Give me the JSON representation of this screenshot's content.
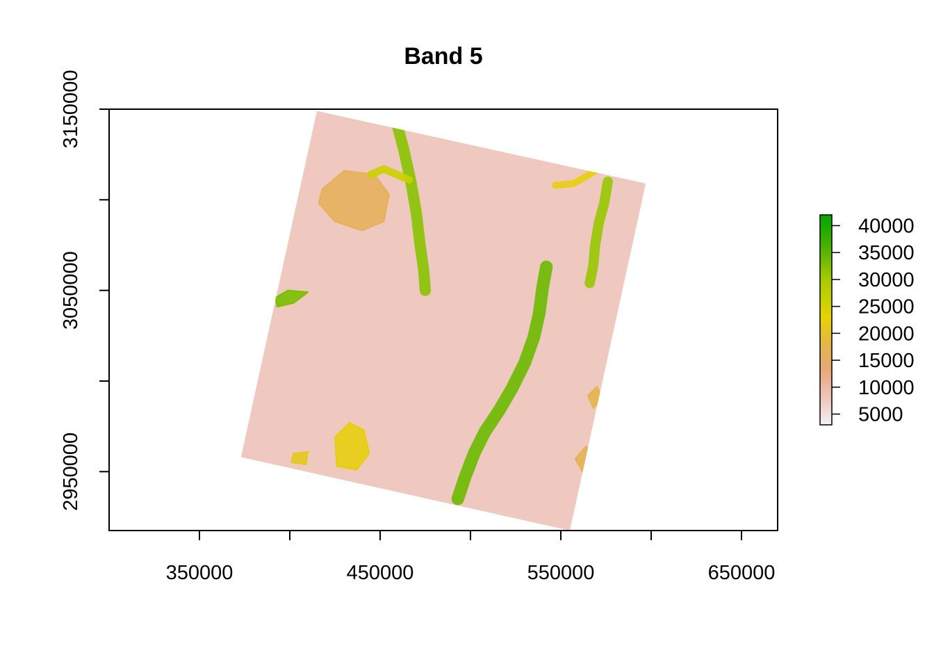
{
  "chart_data": {
    "type": "heatmap",
    "title": "Band 5",
    "xlabel": "",
    "ylabel": "",
    "xlim": [
      300000,
      670000
    ],
    "ylim": [
      2917500,
      3150000
    ],
    "x_ticks": [
      350000,
      400000,
      450000,
      500000,
      550000,
      600000,
      650000
    ],
    "x_tick_labels": [
      "350000",
      "",
      "450000",
      "",
      "550000",
      "",
      "650000"
    ],
    "y_ticks": [
      2950000,
      3000000,
      3050000,
      3100000,
      3150000
    ],
    "y_tick_labels": [
      "2950000",
      "",
      "3050000",
      "",
      "3150000"
    ],
    "raster_corners": [
      {
        "corner": "top-left",
        "x": 415000,
        "y": 3149000
      },
      {
        "corner": "top-right",
        "x": 597000,
        "y": 3109000
      },
      {
        "corner": "bottom-right",
        "x": 555000,
        "y": 2917500
      },
      {
        "corner": "bottom-left",
        "x": 373000,
        "y": 2958000
      }
    ],
    "legend": {
      "position": "right",
      "range": [
        3000,
        42000
      ],
      "ticks": [
        5000,
        10000,
        15000,
        20000,
        25000,
        30000,
        35000,
        40000
      ],
      "tick_labels": [
        "5000",
        "10000",
        "15000",
        "20000",
        "25000",
        "30000",
        "35000",
        "40000"
      ],
      "color_stops": [
        {
          "value": 3000,
          "color": "#f2f2f2"
        },
        {
          "value": 8000,
          "color": "#efc5bb"
        },
        {
          "value": 13000,
          "color": "#e9a87a"
        },
        {
          "value": 18000,
          "color": "#e4b54a"
        },
        {
          "value": 23000,
          "color": "#e6d400"
        },
        {
          "value": 30000,
          "color": "#a6cb00"
        },
        {
          "value": 36000,
          "color": "#4cb200"
        },
        {
          "value": 42000,
          "color": "#00a600"
        }
      ]
    },
    "features": [
      {
        "kind": "polygon",
        "value": 16000,
        "points": [
          [
            418000,
            3106000
          ],
          [
            430000,
            3116000
          ],
          [
            447000,
            3114000
          ],
          [
            455000,
            3103000
          ],
          [
            452000,
            3088000
          ],
          [
            440000,
            3083000
          ],
          [
            425000,
            3088000
          ],
          [
            416000,
            3098000
          ]
        ]
      },
      {
        "kind": "line",
        "value": 32000,
        "width": 6200,
        "points": [
          [
            459000,
            3143000
          ],
          [
            463000,
            3128000
          ],
          [
            467000,
            3110000
          ],
          [
            470000,
            3093000
          ],
          [
            472000,
            3076000
          ],
          [
            474000,
            3062000
          ],
          [
            475000,
            3050000
          ]
        ]
      },
      {
        "kind": "line",
        "value": 26000,
        "width": 4200,
        "points": [
          [
            445000,
            3114000
          ],
          [
            452000,
            3117000
          ],
          [
            459000,
            3114000
          ],
          [
            466000,
            3111000
          ]
        ]
      },
      {
        "kind": "line",
        "value": 34000,
        "width": 7000,
        "points": [
          [
            493000,
            2935000
          ],
          [
            497000,
            2947000
          ],
          [
            502000,
            2960000
          ],
          [
            508000,
            2972000
          ],
          [
            516000,
            2984000
          ],
          [
            523000,
            2996000
          ],
          [
            530000,
            3010000
          ],
          [
            535000,
            3024000
          ],
          [
            538000,
            3037000
          ],
          [
            540000,
            3052000
          ],
          [
            542000,
            3063000
          ]
        ]
      },
      {
        "kind": "line",
        "value": 31000,
        "width": 5600,
        "points": [
          [
            576000,
            3110000
          ],
          [
            574000,
            3098000
          ],
          [
            571000,
            3087000
          ],
          [
            569000,
            3075000
          ],
          [
            568000,
            3064000
          ],
          [
            566000,
            3054000
          ]
        ]
      },
      {
        "kind": "line",
        "value": 22000,
        "width": 3800,
        "points": [
          [
            547000,
            3108000
          ],
          [
            557000,
            3109000
          ],
          [
            566000,
            3114000
          ],
          [
            571000,
            3117000
          ]
        ]
      },
      {
        "kind": "polygon",
        "value": 22000,
        "points": [
          [
            425000,
            2969000
          ],
          [
            433000,
            2977000
          ],
          [
            441000,
            2973000
          ],
          [
            444000,
            2960000
          ],
          [
            437000,
            2951000
          ],
          [
            426000,
            2953000
          ]
        ]
      },
      {
        "kind": "polygon",
        "value": 21000,
        "points": [
          [
            402000,
            2960000
          ],
          [
            410000,
            2961000
          ],
          [
            409000,
            2954000
          ],
          [
            401000,
            2955000
          ]
        ]
      },
      {
        "kind": "polygon",
        "value": 33000,
        "points": [
          [
            392000,
            3046000
          ],
          [
            399000,
            3050000
          ],
          [
            410000,
            3049000
          ],
          [
            402000,
            3043000
          ],
          [
            393000,
            3041000
          ]
        ]
      },
      {
        "kind": "polygon",
        "value": 18000,
        "points": [
          [
            565000,
            2992000
          ],
          [
            570000,
            2997000
          ],
          [
            573000,
            2991000
          ],
          [
            568000,
            2985000
          ]
        ]
      },
      {
        "kind": "polygon",
        "value": 17000,
        "points": [
          [
            558000,
            2957000
          ],
          [
            564000,
            2964000
          ],
          [
            568000,
            2958000
          ],
          [
            562000,
            2950000
          ]
        ]
      }
    ]
  }
}
